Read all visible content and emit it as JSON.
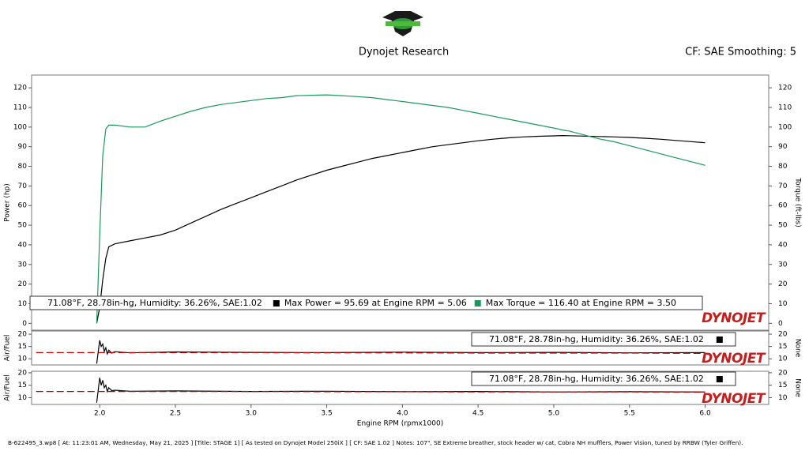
{
  "header": {
    "title": "Dynojet Research",
    "settings": "CF: SAE Smoothing: 5"
  },
  "watermark": "DYNOJET",
  "footer": "B-622495_3.wp8  [ At: 11:23:01 AM, Wednesday, May 21, 2025 ]  [Title: STAGE 1]  [ As tested on Dynojet Model 250iX ]  [ CF: SAE 1.02 ]  Notes: 107\", SE Extreme breather, stock header w/ cat, Cobra NH mufflers, Power Vision, tuned by RRBW (Tyler Griffen).",
  "chart_data": [
    {
      "type": "line",
      "ylabel": "Power (hp)",
      "y2label": "Torque (ft-lbs)",
      "legend_title": "71.08°F, 28.78in-hg, Humidity: 36.26%, SAE:1.02",
      "x": [
        1.98,
        2.0,
        2.02,
        2.04,
        2.06,
        2.1,
        2.2,
        2.3,
        2.4,
        2.5,
        2.6,
        2.7,
        2.8,
        2.9,
        3.0,
        3.1,
        3.2,
        3.3,
        3.4,
        3.5,
        3.6,
        3.7,
        3.8,
        3.9,
        4.0,
        4.1,
        4.2,
        4.3,
        4.4,
        4.5,
        4.6,
        4.7,
        4.8,
        4.9,
        5.0,
        5.06,
        5.1,
        5.2,
        5.3,
        5.4,
        5.5,
        5.6,
        5.7,
        5.8,
        5.9,
        6.0
      ],
      "series": [
        {
          "name": "Max Power = 95.69 at Engine RPM = 5.06",
          "color": "#000000",
          "values": [
            0,
            8,
            22,
            33,
            39,
            40.5,
            42,
            43.5,
            45,
            47.5,
            51,
            54.5,
            58,
            61,
            64,
            67,
            70,
            73,
            75.5,
            78,
            80,
            82,
            84,
            85.5,
            87,
            88.5,
            90,
            91,
            92,
            93,
            93.8,
            94.5,
            95,
            95.3,
            95.5,
            95.69,
            95.6,
            95.4,
            95.2,
            95,
            94.7,
            94.3,
            93.8,
            93.2,
            92.6,
            92
          ]
        },
        {
          "name": "Max Torque = 116.40 at Engine RPM = 3.50",
          "color": "#1a9a5a",
          "axis": "y2",
          "values": [
            0,
            45,
            85,
            99,
            101,
            101,
            100,
            100,
            103,
            105.5,
            108,
            110,
            111.5,
            112.5,
            113.5,
            114.5,
            115,
            116,
            116.2,
            116.4,
            116,
            115.5,
            115,
            114,
            113,
            112,
            111,
            110,
            108.5,
            107,
            105.5,
            104,
            102.5,
            101,
            99.5,
            98.5,
            98,
            96,
            94,
            92.5,
            90.5,
            88.5,
            86.5,
            84.5,
            82.5,
            80.5
          ]
        }
      ],
      "xlim": [
        1.55,
        6.42
      ],
      "ylim": [
        -3.5,
        126.5
      ],
      "yticks": [
        0,
        10,
        20,
        30,
        40,
        50,
        60,
        70,
        80,
        90,
        100,
        110,
        120
      ],
      "y2lim": [
        -3.5,
        126.5
      ],
      "y2ticks": [
        0,
        10,
        20,
        30,
        40,
        50,
        60,
        70,
        80,
        90,
        100,
        110,
        120
      ]
    },
    {
      "type": "line",
      "ylabel": "Air/Fuel",
      "y2label": "None",
      "x": [
        1.58,
        1.98,
        2.0,
        2.01,
        2.02,
        2.03,
        2.04,
        2.05,
        2.06,
        2.08,
        2.1,
        2.2,
        2.5,
        3.0,
        3.5,
        4.0,
        4.5,
        5.0,
        5.5,
        6.0
      ],
      "series": [
        {
          "name": "71.08°F, 28.78in-hg, Humidity: 36.26%, SAE:1.02",
          "color": "#000000",
          "values": [
            null,
            8,
            17.5,
            15,
            16,
            13,
            14.5,
            12,
            13.5,
            12.3,
            12.9,
            12.4,
            12.8,
            12.6,
            12.5,
            12.7,
            12.5,
            12.6,
            12.4,
            12.5
          ]
        },
        {
          "color": "#c00000",
          "dash": true,
          "values": [
            12.5,
            12.5,
            12.5,
            12.5,
            12.5,
            12.5,
            12.5,
            12.5,
            12.5,
            12.5,
            12.5,
            12.5,
            12.5,
            12.5,
            12.4,
            12.4,
            12.3,
            12.3,
            12.3,
            12.2
          ]
        }
      ],
      "xlim": [
        1.55,
        6.42
      ],
      "ylim": [
        7.5,
        21.3
      ],
      "yticks": [
        10,
        15,
        20
      ],
      "y2lim": [
        7.5,
        21.3
      ],
      "y2ticks": [
        10,
        15,
        20
      ]
    },
    {
      "type": "line",
      "ylabel": "Air/Fuel",
      "y2label": "None",
      "xlabel": "Engine RPM (rpmx1000)",
      "x": [
        1.58,
        1.98,
        2.0,
        2.01,
        2.02,
        2.03,
        2.04,
        2.05,
        2.06,
        2.08,
        2.1,
        2.2,
        2.5,
        3.0,
        3.5,
        4.0,
        4.5,
        5.0,
        5.5,
        6.0
      ],
      "series": [
        {
          "name": "71.08°F, 28.78in-hg, Humidity: 36.26%, SAE:1.02",
          "color": "#000000",
          "values": [
            null,
            8,
            18,
            15,
            17,
            14,
            15,
            12.5,
            14,
            12.8,
            13,
            12.6,
            12.7,
            12.5,
            12.6,
            12.4,
            12.5,
            12.3,
            12.4,
            12.3
          ]
        },
        {
          "color": "#c00000",
          "dash": true,
          "values": [
            12.5,
            12.5,
            12.5,
            12.5,
            12.5,
            12.5,
            12.5,
            12.5,
            12.5,
            12.5,
            12.5,
            12.5,
            12.5,
            12.5,
            12.4,
            12.4,
            12.3,
            12.3,
            12.3,
            12.2
          ]
        }
      ],
      "xlim": [
        1.55,
        6.42
      ],
      "xticks": [
        {
          "value": 2,
          "label": "2.0"
        },
        2.5,
        {
          "value": 3,
          "label": "3.0"
        },
        3.5,
        {
          "value": 4,
          "label": "4.0"
        },
        4.5,
        {
          "value": 5,
          "label": "5.0"
        },
        5.5,
        {
          "value": 6,
          "label": "6.0"
        }
      ],
      "ylim": [
        7.3,
        20.6
      ],
      "yticks": [
        10,
        15,
        20
      ],
      "y2lim": [
        7.3,
        20.6
      ],
      "y2ticks": [
        10,
        15,
        20
      ]
    }
  ]
}
